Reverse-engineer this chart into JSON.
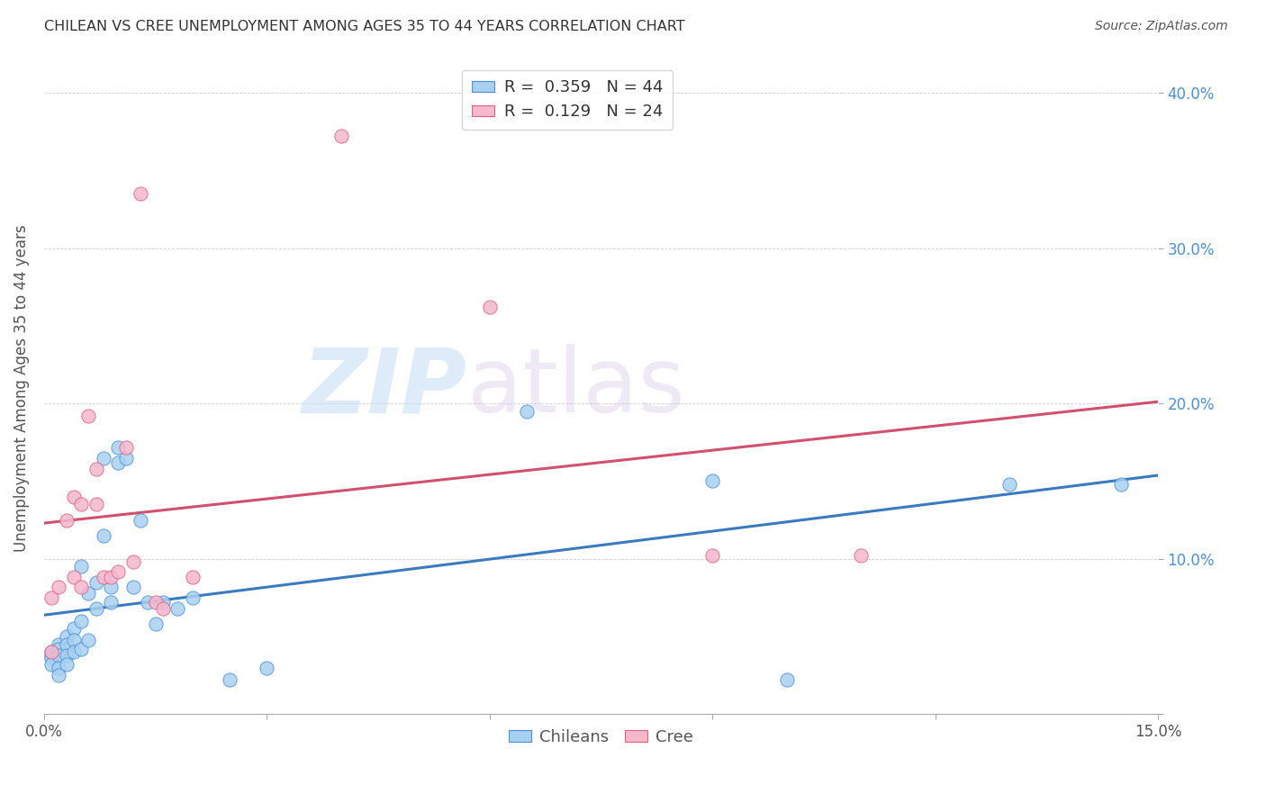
{
  "title": "CHILEAN VS CREE UNEMPLOYMENT AMONG AGES 35 TO 44 YEARS CORRELATION CHART",
  "source": "Source: ZipAtlas.com",
  "ylabel": "Unemployment Among Ages 35 to 44 years",
  "xlim": [
    0.0,
    0.15
  ],
  "ylim": [
    0.0,
    0.42
  ],
  "xticks": [
    0.0,
    0.03,
    0.06,
    0.09,
    0.12,
    0.15
  ],
  "xtick_labels": [
    "0.0%",
    "",
    "",
    "",
    "",
    "15.0%"
  ],
  "yticks": [
    0.0,
    0.1,
    0.2,
    0.3,
    0.4
  ],
  "ytick_labels": [
    "",
    "10.0%",
    "20.0%",
    "30.0%",
    "40.0%"
  ],
  "legend_label1": "R =  0.359   N = 44",
  "legend_label2": "R =  0.129   N = 24",
  "color_chilean": "#a8d0f0",
  "color_cree": "#f5b8cc",
  "edge_color_chilean": "#4a90d9",
  "edge_color_cree": "#e06080",
  "regression_color_chilean": "#3a7abf",
  "regression_color_cree": "#d05070",
  "watermark_zip": "ZIP",
  "watermark_atlas": "atlas",
  "chilean_x": [
    0.001,
    0.001,
    0.001,
    0.001,
    0.002,
    0.002,
    0.002,
    0.002,
    0.002,
    0.003,
    0.003,
    0.003,
    0.003,
    0.004,
    0.004,
    0.004,
    0.005,
    0.005,
    0.005,
    0.006,
    0.006,
    0.007,
    0.007,
    0.008,
    0.008,
    0.009,
    0.009,
    0.01,
    0.01,
    0.011,
    0.012,
    0.013,
    0.014,
    0.015,
    0.016,
    0.018,
    0.02,
    0.025,
    0.03,
    0.065,
    0.09,
    0.1,
    0.13,
    0.145
  ],
  "chilean_y": [
    0.04,
    0.038,
    0.036,
    0.032,
    0.045,
    0.042,
    0.038,
    0.03,
    0.025,
    0.05,
    0.045,
    0.038,
    0.032,
    0.055,
    0.048,
    0.04,
    0.095,
    0.06,
    0.042,
    0.078,
    0.048,
    0.085,
    0.068,
    0.165,
    0.115,
    0.082,
    0.072,
    0.172,
    0.162,
    0.165,
    0.082,
    0.125,
    0.072,
    0.058,
    0.072,
    0.068,
    0.075,
    0.022,
    0.03,
    0.195,
    0.15,
    0.022,
    0.148,
    0.148
  ],
  "cree_x": [
    0.001,
    0.001,
    0.002,
    0.003,
    0.004,
    0.004,
    0.005,
    0.005,
    0.006,
    0.007,
    0.007,
    0.008,
    0.009,
    0.01,
    0.011,
    0.012,
    0.013,
    0.015,
    0.016,
    0.02,
    0.04,
    0.06,
    0.09,
    0.11
  ],
  "cree_y": [
    0.04,
    0.075,
    0.082,
    0.125,
    0.088,
    0.14,
    0.135,
    0.082,
    0.192,
    0.135,
    0.158,
    0.088,
    0.088,
    0.092,
    0.172,
    0.098,
    0.335,
    0.072,
    0.068,
    0.088,
    0.372,
    0.262,
    0.102,
    0.102
  ]
}
